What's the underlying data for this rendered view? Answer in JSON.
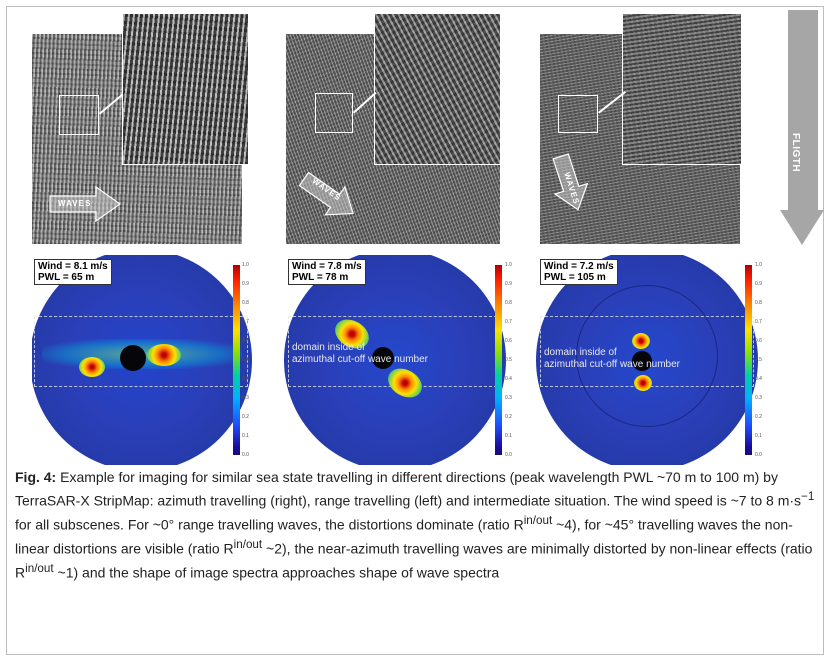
{
  "panels": [
    {
      "arrow_label": "WAVES",
      "wind": "Wind = 8.1 m/s",
      "pwl": "PWL = 65 m",
      "domain_line1": "",
      "domain_line2": ""
    },
    {
      "arrow_label": "WAVES",
      "wind": "Wind = 7.8 m/s",
      "pwl": "PWL = 78 m",
      "domain_line1": "domain inside of",
      "domain_line2": "azimuthal cut-off wave number"
    },
    {
      "arrow_label": "WAVES",
      "wind": "Wind = 7.2 m/s",
      "pwl": "PWL = 105 m",
      "domain_line1": "domain inside of",
      "domain_line2": "azimuthal cut-off wave number"
    }
  ],
  "flight_label": "FLIGTH",
  "colorbar_ticks": [
    "1.0",
    "0.9",
    "0.8",
    "0.7",
    "0.6",
    "0.5",
    "0.4",
    "0.3",
    "0.2",
    "0.1",
    "0.0"
  ],
  "caption": {
    "fig_label": "Fig. 4:",
    "part1": " Example for imaging for similar sea state travelling in different directions (peak wavelength PWL ~70 m to 100 m) by TerraSAR-X StripMap: azimuth travelling (right), range travelling (left) and intermediate situation. The wind speed is ~7 to 8 m·s",
    "sup_speed": "−1",
    "part2": " for all subscenes. For ~0° range travelling waves, the distortions dominate (ratio R",
    "sup1": "in/out",
    "part3": " ~4), for ~45° travelling waves the non-linear distortions are visible (ratio R",
    "sup2": "in/out",
    "part4": " ~2), the near-azimuth travelling waves are minimally distorted by non-linear effects (ratio R",
    "sup3": "in/out",
    "part5": " ~1) and the shape of image spectra approaches shape of wave spectra"
  },
  "colors": {
    "flight_arrow": "#9e9e9e",
    "frame": "#bdbdbd",
    "spectrum_bg": "#2a3fb8"
  }
}
